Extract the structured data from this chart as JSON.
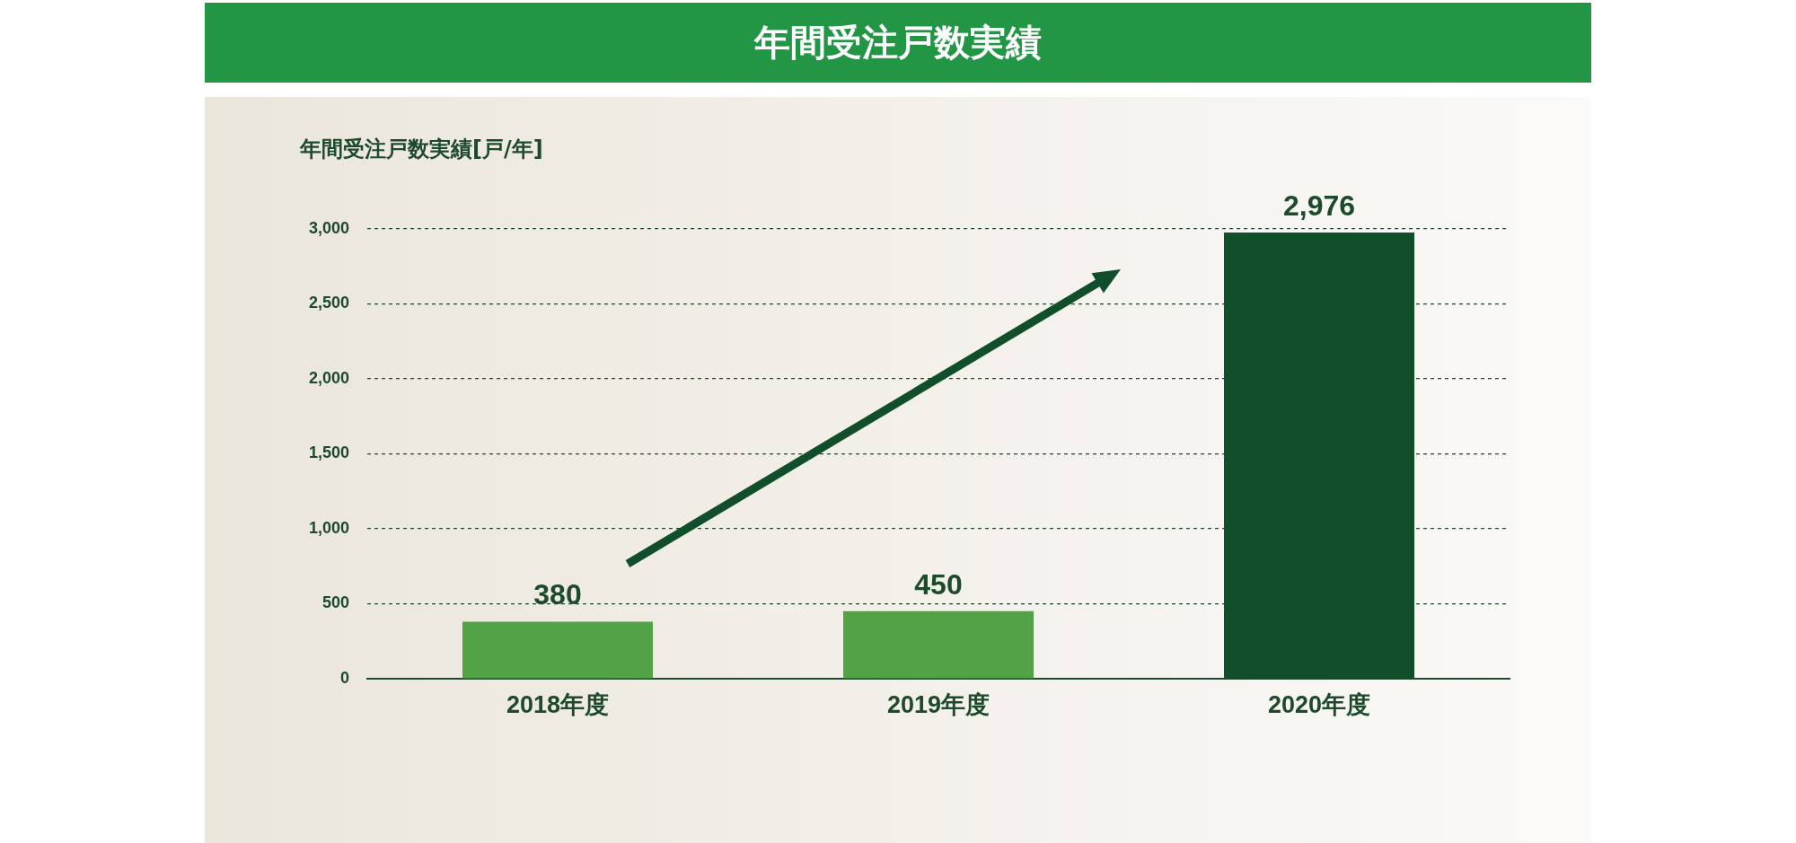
{
  "chart_data": {
    "type": "bar",
    "title": "年間受注戸数実績",
    "ylabel": "年間受注戸数実績[戸/年]",
    "categories": [
      "2018年度",
      "2019年度",
      "2020年度"
    ],
    "values": [
      380,
      450,
      2976
    ],
    "colors": [
      "#52a246",
      "#52a246",
      "#114e2a"
    ],
    "value_labels": [
      "380",
      "450",
      "2,976"
    ],
    "ylim": [
      0,
      3000
    ],
    "yticks": [
      0,
      {
        "value": 500,
        "label": "500"
      },
      {
        "value": 1000,
        "label": "1,000"
      },
      {
        "value": 1500,
        "label": "1,500"
      },
      {
        "value": 2000,
        "label": "2,000"
      },
      {
        "value": 2500,
        "label": "2,500"
      },
      {
        "value": 3000,
        "label": "3,000"
      }
    ],
    "grid": "y",
    "legend": false
  }
}
